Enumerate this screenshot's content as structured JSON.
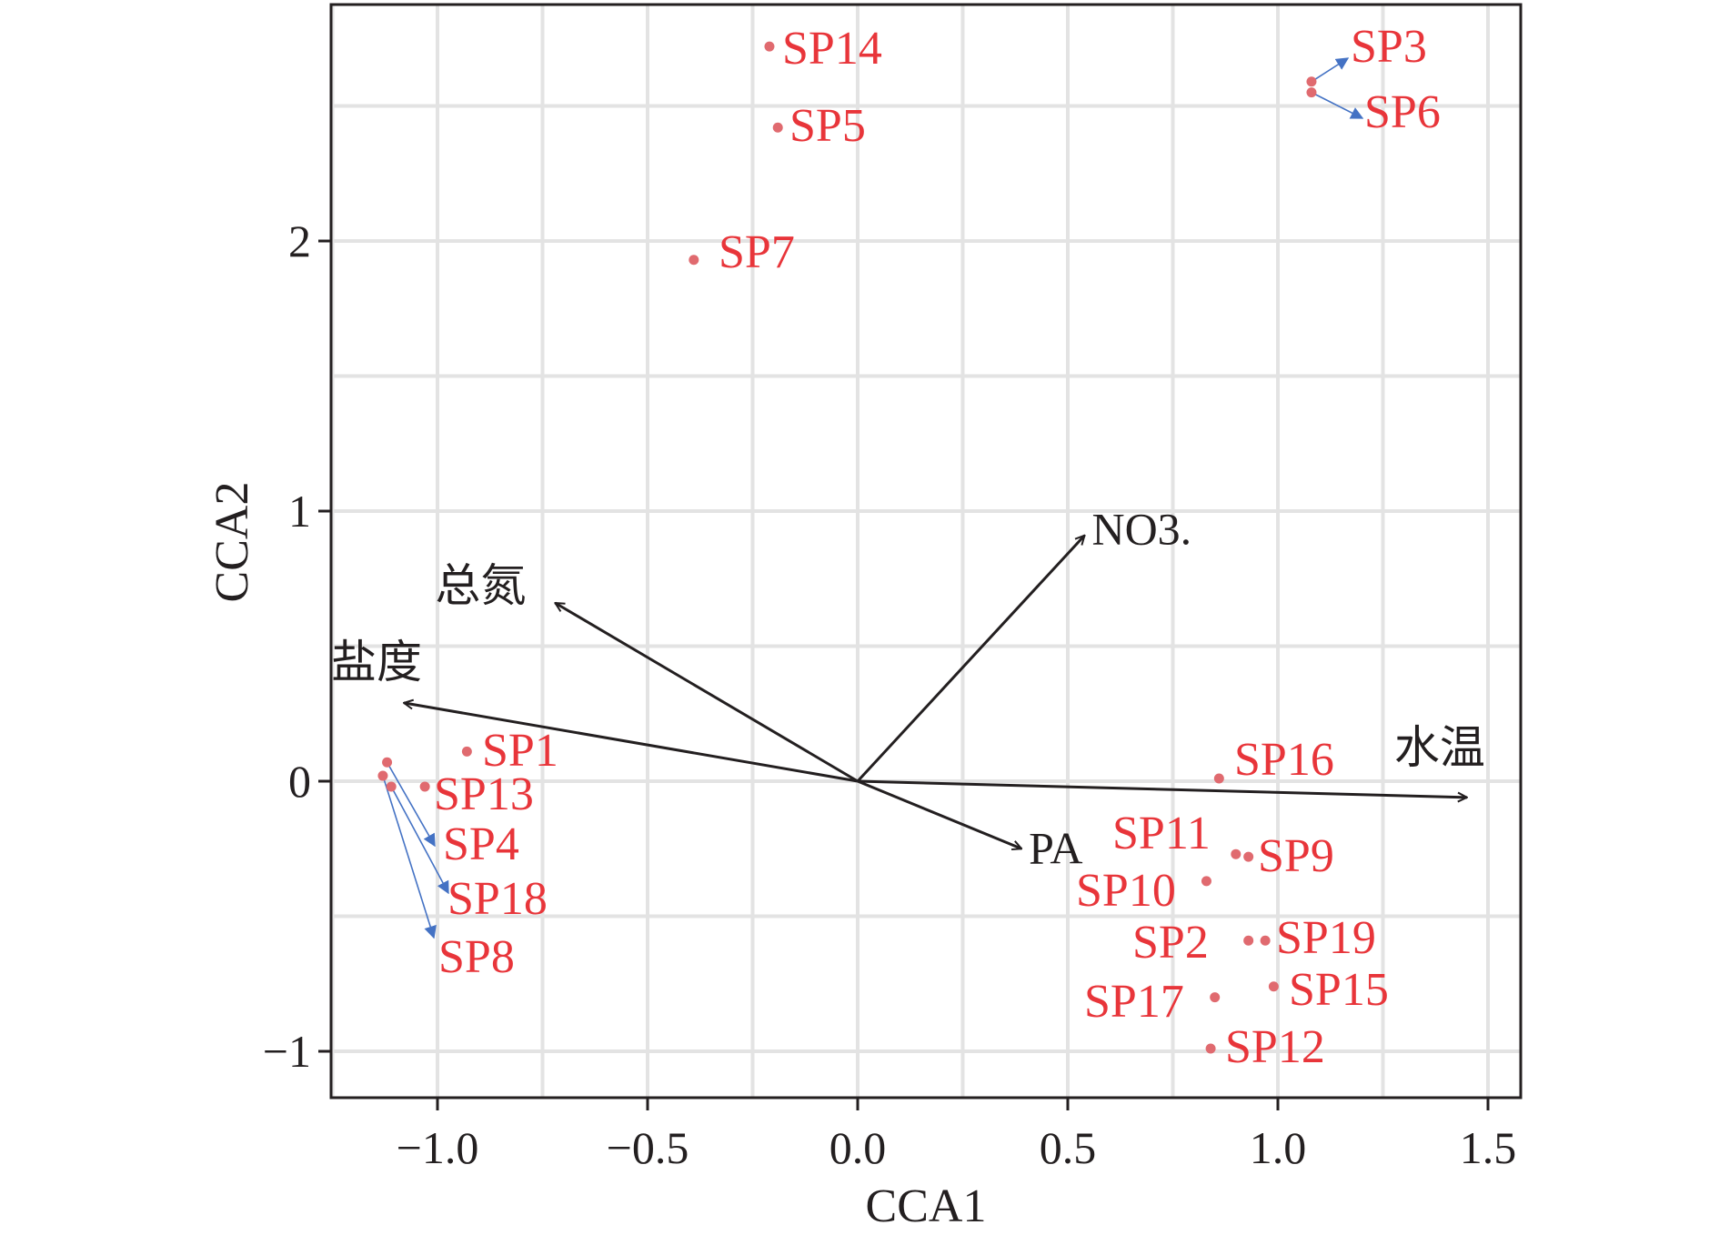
{
  "colors": {
    "species": "#e8353a",
    "species_point": "#e06a6f",
    "env_arrow": "#231f20",
    "leader": "#4472c4",
    "grid": "#e3e3e3",
    "frame": "#231f20"
  },
  "chart_data": {
    "type": "scatter",
    "subtype": "cca-biplot",
    "title": "",
    "xlabel": "CCA1",
    "ylabel": "CCA2",
    "xlim": [
      -1.25,
      1.58
    ],
    "ylim": [
      -1.17,
      2.88
    ],
    "x_ticks": [
      -1.0,
      -0.5,
      0.0,
      0.5,
      1.0,
      1.5
    ],
    "x_tick_labels": [
      "−1.0",
      "−0.5",
      "0.0",
      "0.5",
      "1.0",
      "1.5"
    ],
    "y_ticks": [
      -1,
      0,
      1,
      2
    ],
    "y_tick_labels": [
      "−1",
      "0",
      "1",
      "2"
    ],
    "grid": true,
    "species": [
      {
        "label": "SP1",
        "x": -0.93,
        "y": 0.11
      },
      {
        "label": "SP2",
        "x": 0.93,
        "y": -0.59
      },
      {
        "label": "SP3",
        "x": 1.08,
        "y": 2.59
      },
      {
        "label": "SP4",
        "x": -1.12,
        "y": 0.07
      },
      {
        "label": "SP5",
        "x": -0.19,
        "y": 2.42
      },
      {
        "label": "SP6",
        "x": 1.08,
        "y": 2.55
      },
      {
        "label": "SP7",
        "x": -0.39,
        "y": 1.93
      },
      {
        "label": "SP8",
        "x": -1.13,
        "y": 0.02
      },
      {
        "label": "SP9",
        "x": 0.93,
        "y": -0.28
      },
      {
        "label": "SP10",
        "x": 0.83,
        "y": -0.37
      },
      {
        "label": "SP11",
        "x": 0.9,
        "y": -0.27
      },
      {
        "label": "SP12",
        "x": 0.84,
        "y": -0.99
      },
      {
        "label": "SP13",
        "x": -1.03,
        "y": -0.02
      },
      {
        "label": "SP14",
        "x": -0.21,
        "y": 2.72
      },
      {
        "label": "SP15",
        "x": 0.99,
        "y": -0.76
      },
      {
        "label": "SP16",
        "x": 0.86,
        "y": 0.01
      },
      {
        "label": "SP17",
        "x": 0.85,
        "y": -0.8
      },
      {
        "label": "SP18",
        "x": -1.11,
        "y": -0.02
      },
      {
        "label": "SP19",
        "x": 0.97,
        "y": -0.59
      }
    ],
    "environment": [
      {
        "label": "总氮",
        "x": -0.72,
        "y": 0.66
      },
      {
        "label": "盐度",
        "x": -1.08,
        "y": 0.29
      },
      {
        "label": "NO3.",
        "x": 0.54,
        "y": 0.91
      },
      {
        "label": "水温",
        "x": 1.45,
        "y": -0.06
      },
      {
        "label": "PA",
        "x": 0.39,
        "y": -0.25
      }
    ]
  }
}
